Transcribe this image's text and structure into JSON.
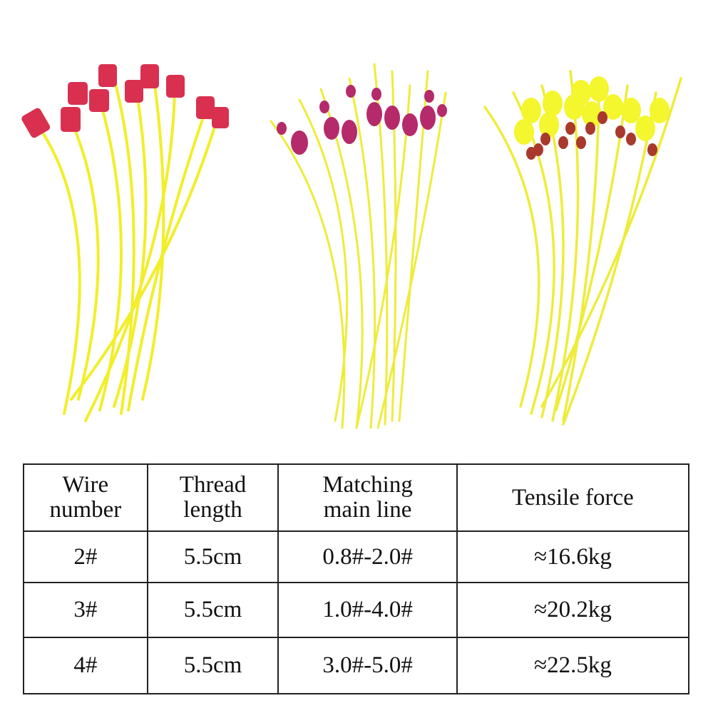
{
  "table": {
    "header": [
      [
        "Wire",
        "number"
      ],
      [
        "Thread",
        "length"
      ],
      [
        "Matching",
        "main line"
      ],
      [
        "Tensile force"
      ]
    ],
    "rows": [
      [
        "2#",
        "5.5cm",
        "0.8#-2.0#",
        "≈16.6kg"
      ],
      [
        "3#",
        "5.5cm",
        "1.0#-4.0#",
        "≈20.2kg"
      ],
      [
        "4#",
        "5.5cm",
        "3.0#-5.0#",
        "≈22.5kg"
      ]
    ]
  }
}
